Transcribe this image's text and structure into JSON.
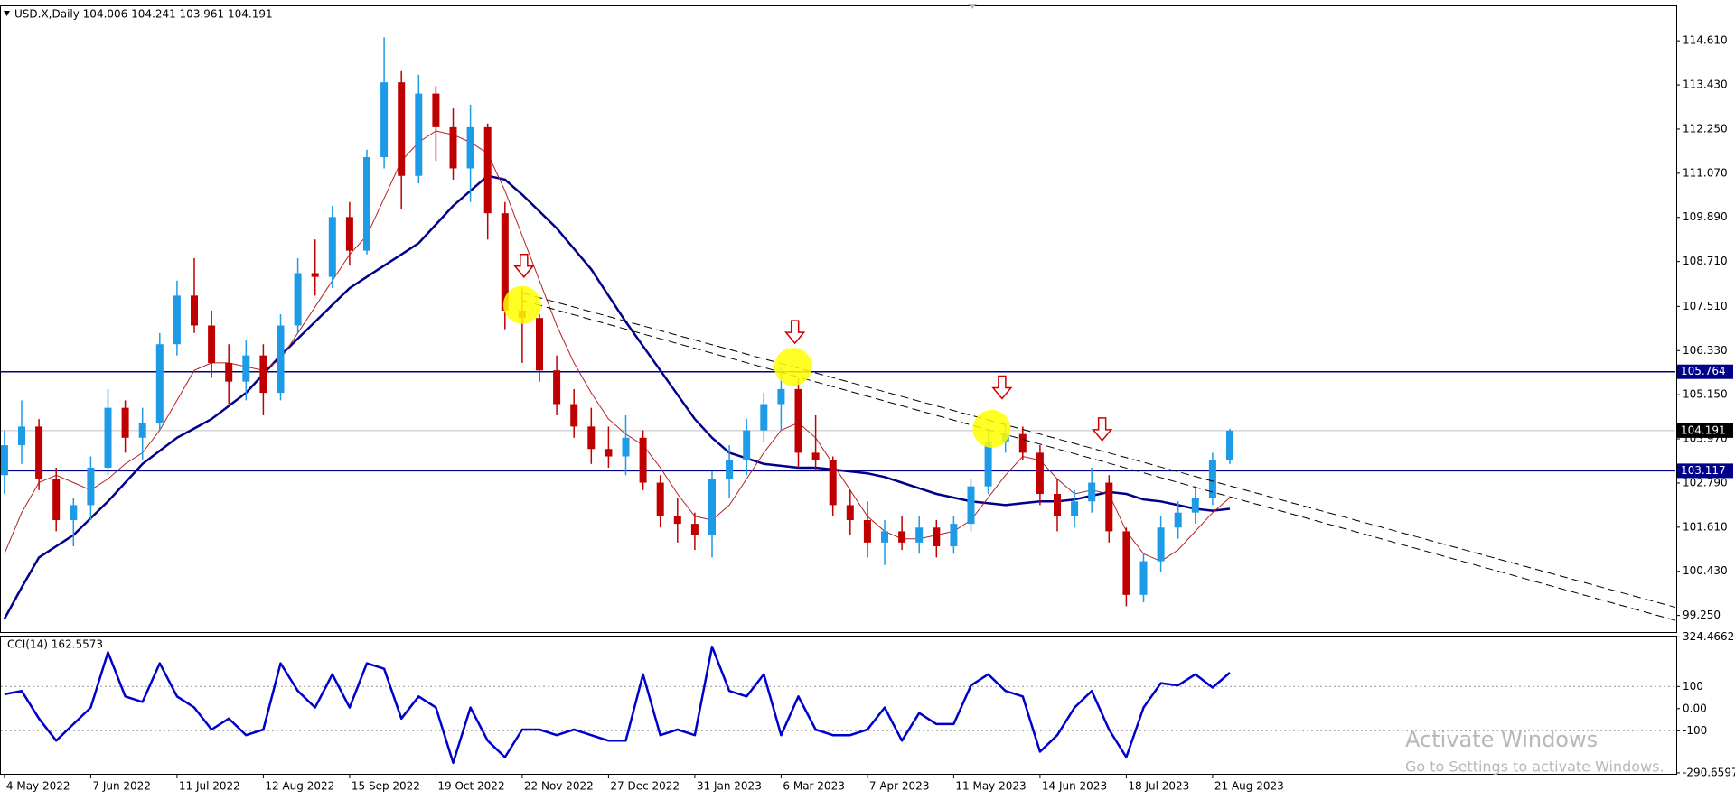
{
  "chart_data": [
    {
      "type": "candlestick",
      "title": "USD.X,Daily  104.006 104.241 103.961 104.191",
      "categories": [
        "4 May 2022",
        null,
        null,
        null,
        null,
        "7 Jun 2022",
        null,
        null,
        null,
        null,
        "11 Jul 2022",
        null,
        null,
        null,
        null,
        "12 Aug 2022",
        null,
        null,
        null,
        null,
        "15 Sep 2022",
        null,
        null,
        null,
        null,
        "19 Oct 2022",
        null,
        null,
        null,
        null,
        "22 Nov 2022",
        null,
        null,
        null,
        null,
        "27 Dec 2022",
        null,
        null,
        null,
        null,
        "31 Jan 2023",
        null,
        null,
        null,
        null,
        "6 Mar 2023",
        null,
        null,
        null,
        null,
        "7 Apr 2023",
        null,
        null,
        null,
        null,
        "11 May 2023",
        null,
        null,
        null,
        null,
        "14 Jun 2023",
        null,
        null,
        null,
        null,
        "18 Jul 2023",
        null,
        null,
        null,
        null,
        "21 Aug 2023",
        null
      ],
      "open": [
        103.0,
        103.8,
        104.3,
        102.9,
        101.8,
        102.2,
        103.2,
        104.8,
        104.0,
        104.4,
        106.5,
        107.8,
        107.0,
        106.0,
        105.5,
        106.2,
        105.2,
        107.0,
        108.4,
        108.3,
        109.9,
        109.0,
        111.5,
        113.5,
        111.0,
        113.2,
        112.3,
        111.2,
        112.3,
        110.0,
        107.4,
        107.2,
        105.8,
        104.9,
        104.3,
        103.7,
        103.5,
        104.0,
        102.8,
        101.9,
        101.7,
        101.4,
        102.9,
        103.4,
        104.2,
        104.9,
        105.3,
        103.6,
        103.4,
        102.2,
        101.8,
        101.2,
        101.5,
        101.2,
        101.6,
        101.1,
        101.7,
        102.7,
        103.9,
        104.1,
        103.6,
        102.5,
        101.9,
        102.3,
        102.8,
        101.5,
        99.8,
        100.7,
        101.6,
        102.0,
        102.4,
        103.4
      ],
      "high": [
        104.2,
        105.0,
        104.5,
        103.2,
        102.4,
        103.5,
        105.3,
        105.0,
        104.8,
        106.8,
        108.2,
        108.8,
        107.4,
        106.5,
        106.6,
        106.5,
        107.3,
        108.8,
        109.3,
        110.2,
        110.3,
        111.7,
        114.7,
        113.8,
        113.7,
        113.4,
        112.8,
        112.9,
        112.4,
        110.3,
        108.0,
        107.3,
        106.2,
        105.3,
        104.8,
        104.3,
        104.6,
        104.2,
        103.0,
        102.4,
        102.0,
        103.1,
        103.8,
        104.5,
        105.2,
        105.9,
        105.6,
        104.6,
        103.5,
        102.6,
        102.3,
        101.8,
        101.9,
        101.9,
        101.8,
        101.9,
        102.9,
        104.2,
        104.4,
        104.3,
        103.8,
        102.9,
        102.6,
        103.2,
        103.0,
        101.6,
        100.9,
        101.9,
        102.3,
        102.7,
        103.6,
        104.241
      ],
      "low": [
        102.5,
        103.3,
        102.6,
        101.5,
        101.1,
        101.8,
        103.0,
        103.6,
        103.4,
        104.2,
        106.2,
        106.8,
        105.6,
        104.9,
        105.0,
        104.6,
        105.0,
        106.8,
        107.8,
        108.0,
        108.6,
        108.9,
        111.2,
        110.1,
        110.8,
        111.4,
        110.9,
        110.3,
        109.3,
        106.9,
        106.0,
        105.5,
        104.6,
        104.0,
        103.3,
        103.2,
        103.0,
        102.6,
        101.6,
        101.2,
        101.0,
        100.8,
        102.4,
        103.0,
        103.9,
        104.2,
        103.2,
        103.1,
        101.9,
        101.4,
        100.8,
        100.6,
        101.0,
        100.9,
        100.8,
        100.9,
        101.5,
        102.5,
        103.6,
        103.4,
        102.2,
        101.5,
        101.6,
        102.0,
        101.2,
        99.5,
        99.6,
        100.4,
        101.3,
        101.7,
        102.2,
        103.3
      ],
      "close": [
        103.8,
        104.3,
        102.9,
        101.8,
        102.2,
        103.2,
        104.8,
        104.0,
        104.4,
        106.5,
        107.8,
        107.0,
        106.0,
        105.5,
        106.2,
        105.2,
        107.0,
        108.4,
        108.3,
        109.9,
        109.0,
        111.5,
        113.5,
        111.0,
        113.2,
        112.3,
        111.2,
        112.3,
        110.0,
        107.4,
        107.2,
        105.8,
        104.9,
        104.3,
        103.7,
        103.5,
        104.0,
        102.8,
        101.9,
        101.7,
        101.4,
        102.9,
        103.4,
        104.2,
        104.9,
        105.3,
        103.6,
        103.4,
        102.2,
        101.8,
        101.2,
        101.5,
        101.2,
        101.6,
        101.1,
        101.7,
        102.7,
        103.9,
        104.1,
        103.6,
        102.5,
        101.9,
        102.3,
        102.8,
        101.5,
        99.8,
        100.7,
        101.6,
        102.0,
        102.4,
        103.4,
        104.191
      ],
      "up_color": "#1e9be6",
      "down_color": "#c00000",
      "lines": [
        {
          "color": "#00008b",
          "width": 2.5,
          "values": [
            99.16,
            100.0,
            100.8,
            101.1,
            101.4,
            101.85,
            102.3,
            102.8,
            103.3,
            103.65,
            104.0,
            104.25,
            104.5,
            104.85,
            105.2,
            105.7,
            106.2,
            106.65,
            107.1,
            107.55,
            108.0,
            108.3,
            108.6,
            108.9,
            109.2,
            109.7,
            110.2,
            110.6,
            111.0,
            110.9,
            110.5,
            110.05,
            109.6,
            109.05,
            108.5,
            107.8,
            107.1,
            106.45,
            105.8,
            105.15,
            104.5,
            104.0,
            103.6,
            103.45,
            103.3,
            103.25,
            103.2,
            103.2,
            103.15,
            103.1,
            103.05,
            102.95,
            102.8,
            102.65,
            102.5,
            102.4,
            102.3,
            102.25,
            102.2,
            102.25,
            102.3,
            102.3,
            102.35,
            102.45,
            102.55,
            102.5,
            102.35,
            102.3,
            102.2,
            102.1,
            102.05,
            102.1
          ]
        },
        {
          "color": "#b22222",
          "width": 1,
          "values": [
            100.9,
            102.0,
            102.8,
            103.0,
            102.8,
            102.6,
            102.9,
            103.3,
            103.6,
            104.2,
            105.0,
            105.8,
            106.0,
            106.0,
            105.9,
            105.8,
            106.1,
            106.8,
            107.5,
            108.2,
            108.9,
            109.4,
            110.4,
            111.4,
            111.9,
            112.2,
            112.1,
            111.9,
            111.6,
            110.6,
            109.4,
            108.2,
            107.0,
            106.0,
            105.2,
            104.5,
            104.1,
            103.8,
            103.2,
            102.5,
            101.9,
            101.8,
            102.2,
            102.9,
            103.6,
            104.2,
            104.4,
            104.0,
            103.3,
            102.6,
            101.9,
            101.5,
            101.3,
            101.3,
            101.4,
            101.5,
            101.8,
            102.4,
            103.0,
            103.5,
            103.4,
            102.9,
            102.5,
            102.6,
            102.5,
            101.5,
            100.9,
            100.7,
            101.0,
            101.5,
            102.0,
            102.4
          ]
        }
      ],
      "levels": [
        {
          "value": 105.764,
          "color": "#00008b"
        },
        {
          "value": 103.117,
          "color": "#00008b"
        },
        {
          "value": 104.191,
          "color": "#000000",
          "line_color": "#c0c0c0"
        }
      ],
      "trendlines": [
        {
          "points": [
            {
              "bar": 30,
              "price": 107.87
            },
            {
              "bar": 70,
              "price": 102.84
            }
          ]
        },
        {
          "points": [
            {
              "bar": 30,
              "price": 107.67
            },
            {
              "bar": 70,
              "price": 102.55
            }
          ]
        }
      ],
      "circles": [
        {
          "bar": 30,
          "price": 107.55
        },
        {
          "bar": 45.7,
          "price": 105.9
        },
        {
          "bar": 57.2,
          "price": 104.24
        }
      ],
      "arrows": [
        {
          "bar": 30.1,
          "price": 108.61
        },
        {
          "bar": 45.8,
          "price": 106.84
        },
        {
          "bar": 57.8,
          "price": 105.36
        },
        {
          "bar": 63.6,
          "price": 104.24
        }
      ],
      "ylim": [
        98.807,
        115.555
      ],
      "yticks": [
        {
          "value": 114.61,
          "label": "114.610"
        },
        {
          "value": 113.43,
          "label": "113.430"
        },
        {
          "value": 112.25,
          "label": "112.250"
        },
        {
          "value": 111.07,
          "label": "111.070"
        },
        {
          "value": 109.89,
          "label": "109.890"
        },
        {
          "value": 108.71,
          "label": "108.710"
        },
        {
          "value": 107.51,
          "label": "107.510"
        },
        {
          "value": 106.33,
          "label": "106.330"
        },
        {
          "value": 105.15,
          "label": "105.150"
        },
        {
          "value": 103.97,
          "label": "103.970"
        },
        {
          "value": 102.79,
          "label": "102.790"
        },
        {
          "value": 101.61,
          "label": "101.610"
        },
        {
          "value": 100.43,
          "label": "100.430"
        },
        {
          "value": 99.25,
          "label": "99.250"
        }
      ]
    },
    {
      "type": "line",
      "title": "CCI(14) 162.5573",
      "color": "#0000cc",
      "values": [
        65,
        80,
        -45,
        -145,
        -70,
        5,
        255,
        55,
        30,
        205,
        55,
        5,
        -95,
        -45,
        -120,
        -95,
        205,
        80,
        5,
        155,
        5,
        205,
        180,
        -45,
        55,
        5,
        -245,
        5,
        -145,
        -220,
        -95,
        -95,
        -120,
        -95,
        -120,
        -145,
        -145,
        155,
        -120,
        -95,
        -120,
        280,
        80,
        55,
        155,
        -120,
        55,
        -95,
        -120,
        -120,
        -95,
        5,
        -145,
        -20,
        -70,
        -70,
        105,
        155,
        80,
        55,
        -195,
        -120,
        5,
        80,
        -95,
        -220,
        5,
        115,
        105,
        155,
        95,
        162.5573
      ],
      "levels": [
        100,
        -100
      ],
      "ylim": [
        -295,
        330
      ],
      "yticks": [
        324.4662,
        100,
        {
          "value": 0,
          "label": "0.00"
        },
        -100,
        -290.6597
      ]
    }
  ],
  "watermark": {
    "title": "Activate Windows",
    "subtitle": "Go to Settings to activate Windows."
  }
}
